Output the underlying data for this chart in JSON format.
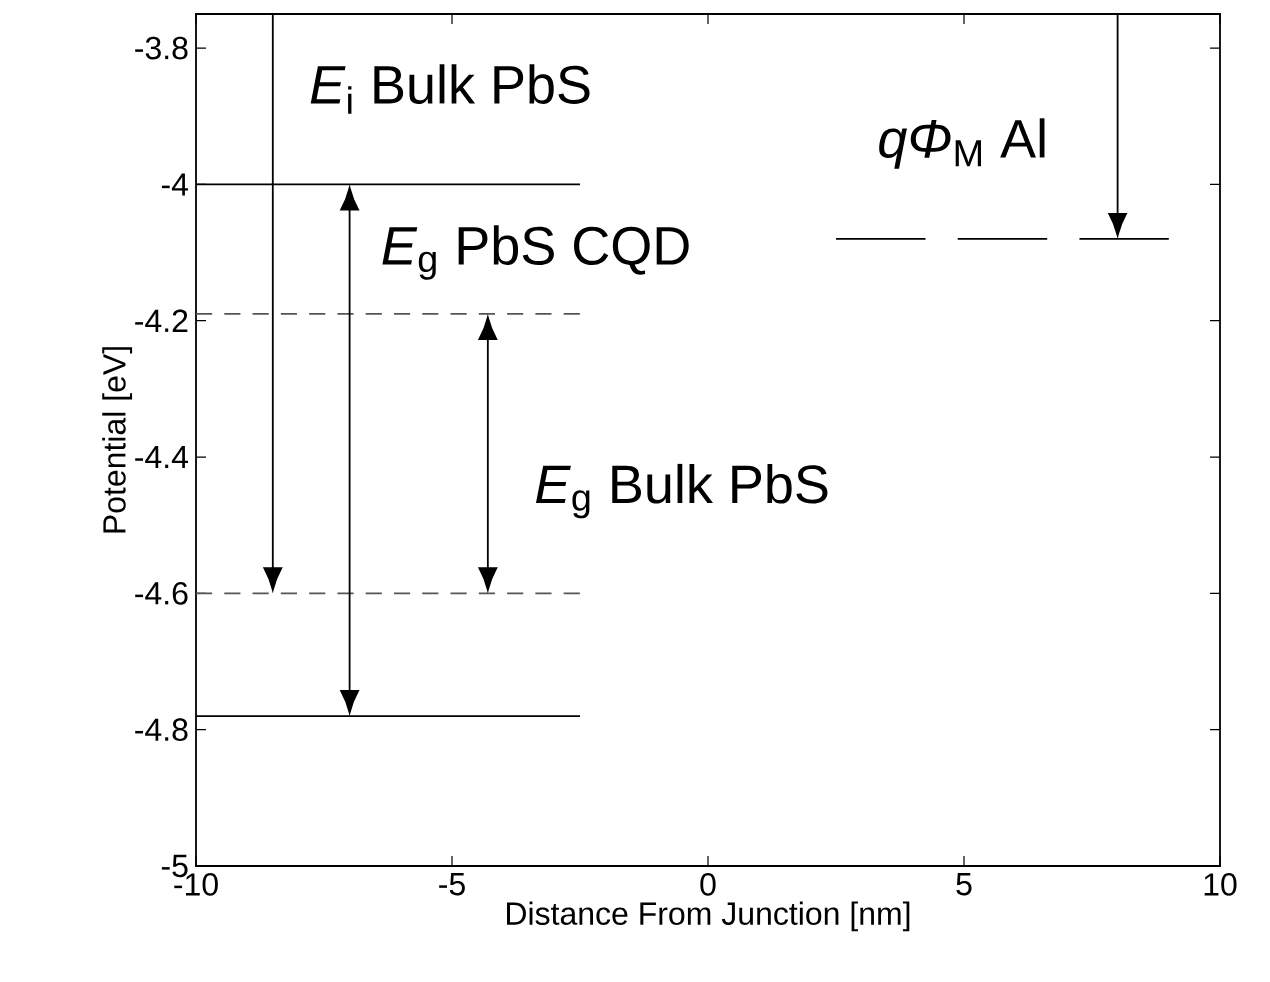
{
  "chart_data": {
    "type": "line",
    "xlabel": "Distance From Junction [nm]",
    "ylabel": "Potential [eV]",
    "xlim": [
      -10,
      10
    ],
    "ylim": [
      -5,
      -3.75
    ],
    "xticks": [
      -10,
      -5,
      0,
      5,
      10
    ],
    "yticks": [
      -5,
      -4.8,
      -4.6,
      -4.4,
      -4.2,
      -4,
      -3.8
    ],
    "grid": false,
    "series": [
      {
        "color": "#000000",
        "line_style": "solid",
        "x": [
          -10,
          -2.5
        ],
        "values": [
          -4,
          -4
        ]
      },
      {
        "color": "#555555",
        "line_style": "dashed",
        "x": [
          -10,
          -2.5
        ],
        "values": [
          -4.19,
          -4.19
        ]
      },
      {
        "color": "#555555",
        "line_style": "dashed",
        "x": [
          -10,
          -2.5
        ],
        "values": [
          -4.6,
          -4.6
        ]
      },
      {
        "color": "#000000",
        "line_style": "solid",
        "x": [
          -10,
          -2.5
        ],
        "values": [
          -4.78,
          -4.78
        ]
      },
      {
        "color": "#000000",
        "line_style": "dashed",
        "x": [
          2.5,
          9
        ],
        "values": [
          -4.08,
          -4.08
        ]
      }
    ],
    "annotations": [
      "*E*$_{i}$ Bulk PbS",
      "*E*$_{g}$ PbS CQD",
      "*E*$_{g}$ Bulk PbS",
      "*qΦ*$_{M}$ Al"
    ]
  }
}
